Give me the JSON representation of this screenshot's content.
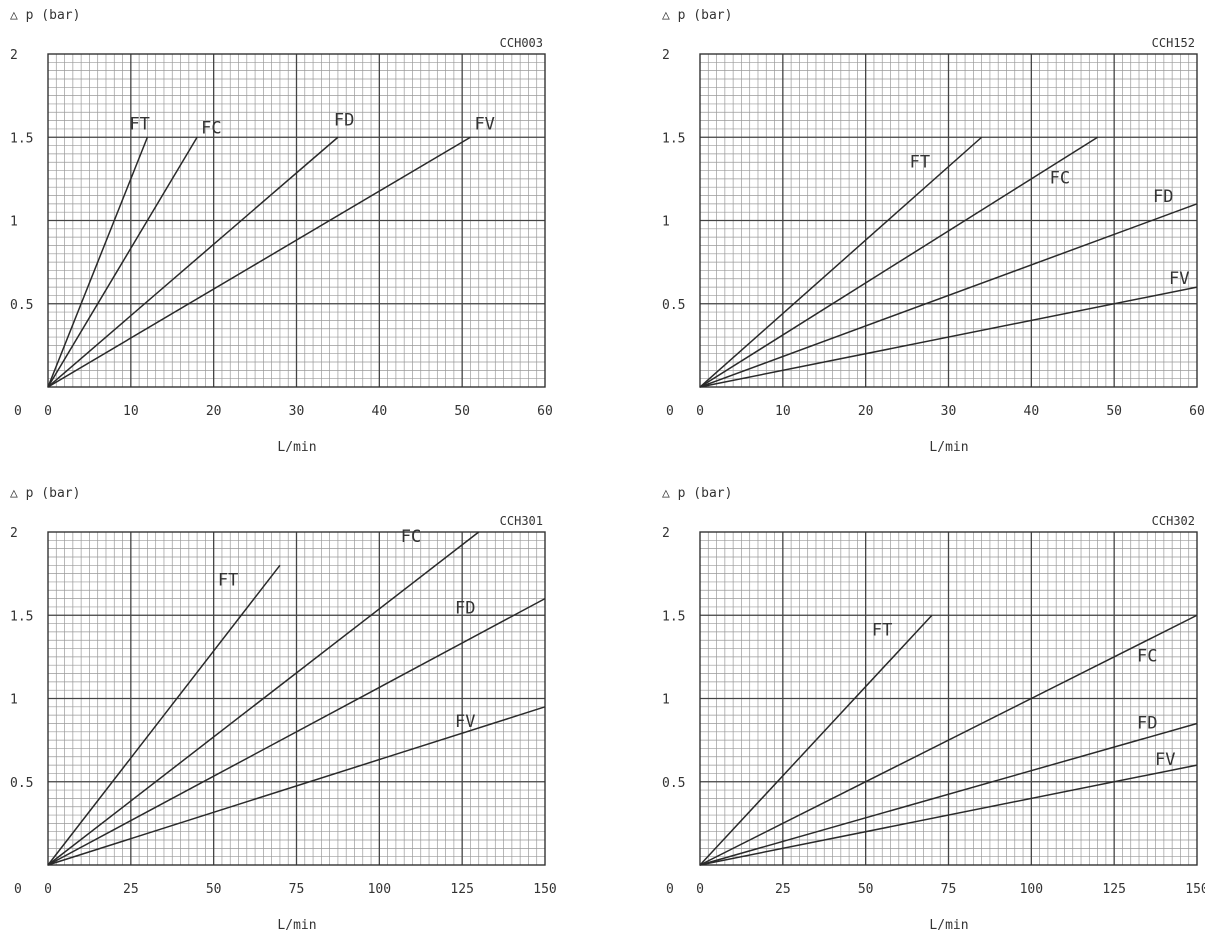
{
  "chart_data": [
    {
      "type": "line",
      "title": "CCH003",
      "ylabel": "△ p (bar)",
      "xlabel": "L/min",
      "xlim": [
        0,
        60
      ],
      "ylim": [
        0,
        2
      ],
      "x_ticks": [
        "0",
        "10",
        "20",
        "30",
        "40",
        "50",
        "60"
      ],
      "y_ticks": [
        "0.5",
        "1",
        "1.5",
        "2"
      ],
      "grid": true,
      "series": [
        {
          "name": "FT",
          "x": [
            0,
            12
          ],
          "y": [
            0,
            1.5
          ]
        },
        {
          "name": "FC",
          "x": [
            0,
            18
          ],
          "y": [
            0,
            1.5
          ]
        },
        {
          "name": "FD",
          "x": [
            0,
            35
          ],
          "y": [
            0,
            1.5
          ]
        },
        {
          "name": "FV",
          "x": [
            0,
            51
          ],
          "y": [
            0,
            1.5
          ]
        }
      ]
    },
    {
      "type": "line",
      "title": "CCH152",
      "ylabel": "△ p (bar)",
      "xlabel": "L/min",
      "xlim": [
        0,
        60
      ],
      "ylim": [
        0,
        2
      ],
      "x_ticks": [
        "0",
        "10",
        "20",
        "30",
        "40",
        "50",
        "60"
      ],
      "y_ticks": [
        "0.5",
        "1",
        "1.5",
        "2"
      ],
      "grid": true,
      "series": [
        {
          "name": "FT",
          "x": [
            0,
            34
          ],
          "y": [
            0,
            1.5
          ]
        },
        {
          "name": "FC",
          "x": [
            0,
            48
          ],
          "y": [
            0,
            1.5
          ]
        },
        {
          "name": "FD",
          "x": [
            0,
            60
          ],
          "y": [
            0,
            1.1
          ]
        },
        {
          "name": "FV",
          "x": [
            0,
            60
          ],
          "y": [
            0,
            0.6
          ]
        }
      ]
    },
    {
      "type": "line",
      "title": "CCH301",
      "ylabel": "△ p (bar)",
      "xlabel": "L/min",
      "xlim": [
        0,
        150
      ],
      "ylim": [
        0,
        2
      ],
      "x_ticks": [
        "0",
        "25",
        "50",
        "75",
        "100",
        "125",
        "150"
      ],
      "y_ticks": [
        "0.5",
        "1",
        "1.5",
        "2"
      ],
      "grid": true,
      "series": [
        {
          "name": "FT",
          "x": [
            0,
            70
          ],
          "y": [
            0,
            1.8
          ]
        },
        {
          "name": "FC",
          "x": [
            0,
            130
          ],
          "y": [
            0,
            2.0
          ]
        },
        {
          "name": "FD",
          "x": [
            0,
            150
          ],
          "y": [
            0,
            1.6
          ]
        },
        {
          "name": "FV",
          "x": [
            0,
            150
          ],
          "y": [
            0,
            0.95
          ]
        }
      ]
    },
    {
      "type": "line",
      "title": "CCH302",
      "ylabel": "△ p (bar)",
      "xlabel": "L/min",
      "xlim": [
        0,
        150
      ],
      "ylim": [
        0,
        2
      ],
      "x_ticks": [
        "0",
        "25",
        "50",
        "75",
        "100",
        "125",
        "150"
      ],
      "y_ticks": [
        "0.5",
        "1",
        "1.5",
        "2"
      ],
      "grid": true,
      "series": [
        {
          "name": "FT",
          "x": [
            0,
            70
          ],
          "y": [
            0,
            1.5
          ]
        },
        {
          "name": "FC",
          "x": [
            0,
            150
          ],
          "y": [
            0,
            1.5
          ]
        },
        {
          "name": "FD",
          "x": [
            0,
            150
          ],
          "y": [
            0,
            0.85
          ]
        },
        {
          "name": "FV",
          "x": [
            0,
            150
          ],
          "y": [
            0,
            0.6
          ]
        }
      ]
    }
  ]
}
